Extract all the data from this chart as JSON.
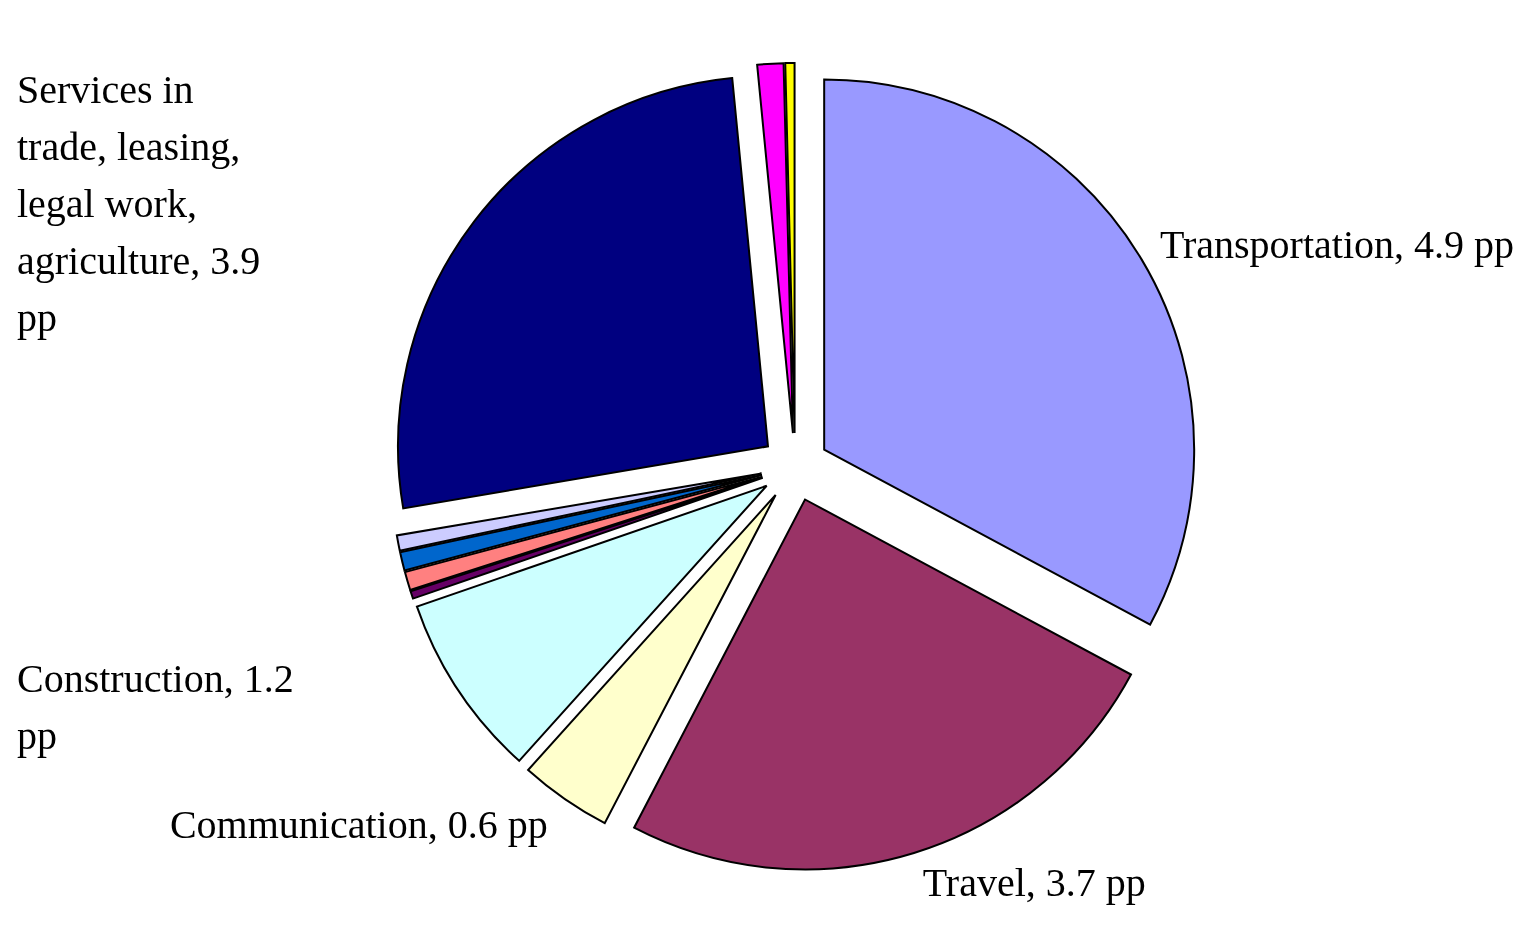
{
  "chart_data": {
    "type": "pie",
    "categories": [
      "Transportation",
      "Travel",
      "Communication",
      "Construction",
      null,
      null,
      null,
      null,
      "Services in trade, leasing, legal work, agriculture",
      null,
      null
    ],
    "values": [
      4.9,
      3.7,
      0.6,
      1.2,
      0.05,
      0.12,
      0.12,
      0.1,
      3.9,
      0.17,
      0.06
    ],
    "value_labels": [
      "4.9 pp",
      "3.7 pp",
      "0.6 pp",
      "1.2 pp",
      null,
      null,
      null,
      null,
      "3.9 pp",
      null,
      null
    ],
    "colors": [
      "#9999ff",
      "#993366",
      "#ffffcc",
      "#ccffff",
      "#660066",
      "#ff8080",
      "#0066cc",
      "#ccccff",
      "#000080",
      "#ff00ff",
      "#ffff00"
    ]
  }
}
